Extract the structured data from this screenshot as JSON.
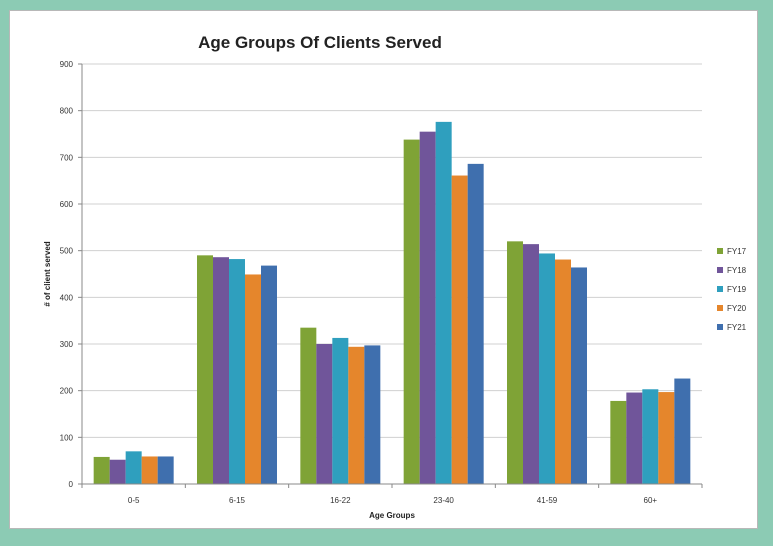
{
  "chart_data": {
    "type": "bar",
    "title": "Age Groups Of Clients Served",
    "xlabel": "Age Groups",
    "ylabel": "# of client served",
    "ylim": [
      0,
      900
    ],
    "yticks": [
      0,
      100,
      200,
      300,
      400,
      500,
      600,
      700,
      800,
      900
    ],
    "categories": [
      "0-5",
      "6-15",
      "16-22",
      "23-40",
      "41-59",
      "60+"
    ],
    "grid": true,
    "legend_position": "right",
    "series": [
      {
        "name": "FY17",
        "color": "#7fa336",
        "values": [
          58,
          490,
          335,
          738,
          520,
          178
        ]
      },
      {
        "name": "FY18",
        "color": "#70559a",
        "values": [
          52,
          486,
          300,
          755,
          514,
          196
        ]
      },
      {
        "name": "FY19",
        "color": "#2f9fbe",
        "values": [
          70,
          482,
          313,
          776,
          494,
          203
        ]
      },
      {
        "name": "FY20",
        "color": "#e5862c",
        "values": [
          59,
          449,
          294,
          661,
          481,
          197
        ]
      },
      {
        "name": "FY21",
        "color": "#3f6fae",
        "values": [
          59,
          468,
          297,
          686,
          464,
          226
        ]
      }
    ]
  }
}
